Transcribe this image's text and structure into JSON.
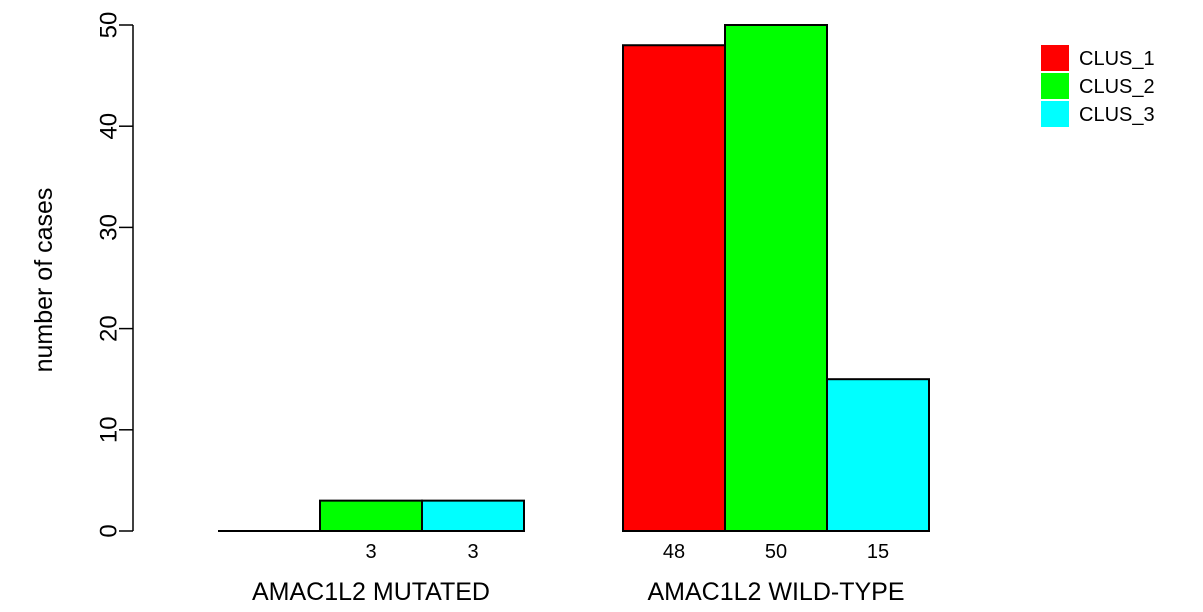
{
  "chart_data": {
    "type": "bar",
    "categories": [
      "AMAC1L2 MUTATED",
      "AMAC1L2 WILD-TYPE"
    ],
    "series": [
      {
        "name": "CLUS_1",
        "color": "#ff0000",
        "values": [
          0,
          48
        ],
        "labels": [
          "",
          "48"
        ]
      },
      {
        "name": "CLUS_2",
        "color": "#00ff00",
        "values": [
          3,
          50
        ],
        "labels": [
          "3",
          "50"
        ]
      },
      {
        "name": "CLUS_3",
        "color": "#00ffff",
        "values": [
          3,
          15
        ],
        "labels": [
          "3",
          "15"
        ]
      }
    ],
    "xlabel": "",
    "ylabel": "number of cases",
    "ylim": [
      0,
      50
    ],
    "yticks": [
      0,
      10,
      20,
      30,
      40,
      50
    ],
    "yticklabels": [
      "0",
      "10",
      "20",
      "30",
      "40",
      "50"
    ],
    "legend_position": "top-right",
    "grid": false
  }
}
